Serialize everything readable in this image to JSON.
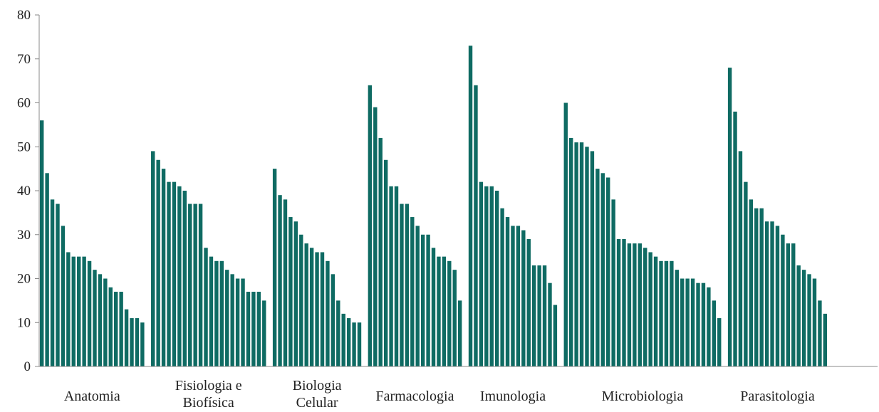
{
  "chart_data": {
    "type": "bar",
    "title": "",
    "xlabel": "",
    "ylabel": "",
    "ylim": [
      0,
      80
    ],
    "yticks": [
      0,
      10,
      20,
      30,
      40,
      50,
      60,
      70,
      80
    ],
    "grid": false,
    "legend": "none",
    "bar_color": "#0f6b63",
    "axis_color": "#888888",
    "groups": [
      {
        "label": [
          "Anatomia"
        ],
        "values": [
          56,
          44,
          38,
          37,
          32,
          26,
          25,
          25,
          25,
          24,
          22,
          21,
          20,
          18,
          17,
          17,
          13,
          11,
          11,
          10
        ]
      },
      {
        "label": [
          "Fisiologia e",
          "Biofísica"
        ],
        "values": [
          49,
          47,
          45,
          42,
          42,
          41,
          40,
          37,
          37,
          37,
          27,
          25,
          24,
          24,
          22,
          21,
          20,
          20,
          17,
          17,
          17,
          15
        ]
      },
      {
        "label": [
          "Biologia",
          "Celular"
        ],
        "values": [
          45,
          39,
          38,
          34,
          33,
          30,
          28,
          27,
          26,
          26,
          24,
          21,
          15,
          12,
          11,
          10,
          10
        ]
      },
      {
        "label": [
          "Farmacologia"
        ],
        "values": [
          64,
          59,
          52,
          47,
          41,
          41,
          37,
          37,
          34,
          32,
          30,
          30,
          27,
          25,
          25,
          24,
          22,
          15
        ]
      },
      {
        "label": [
          "Imunologia"
        ],
        "values": [
          73,
          64,
          42,
          41,
          41,
          40,
          36,
          34,
          32,
          32,
          31,
          29,
          23,
          23,
          23,
          19,
          14
        ]
      },
      {
        "label": [
          "Microbiologia"
        ],
        "values": [
          60,
          52,
          51,
          51,
          50,
          49,
          45,
          44,
          43,
          38,
          29,
          29,
          28,
          28,
          28,
          27,
          26,
          25,
          24,
          24,
          24,
          22,
          20,
          20,
          20,
          19,
          19,
          18,
          15,
          11
        ]
      },
      {
        "label": [
          "Parasitologia"
        ],
        "values": [
          68,
          58,
          49,
          42,
          38,
          36,
          36,
          33,
          33,
          32,
          30,
          28,
          28,
          23,
          22,
          21,
          20,
          15,
          12
        ]
      }
    ]
  }
}
